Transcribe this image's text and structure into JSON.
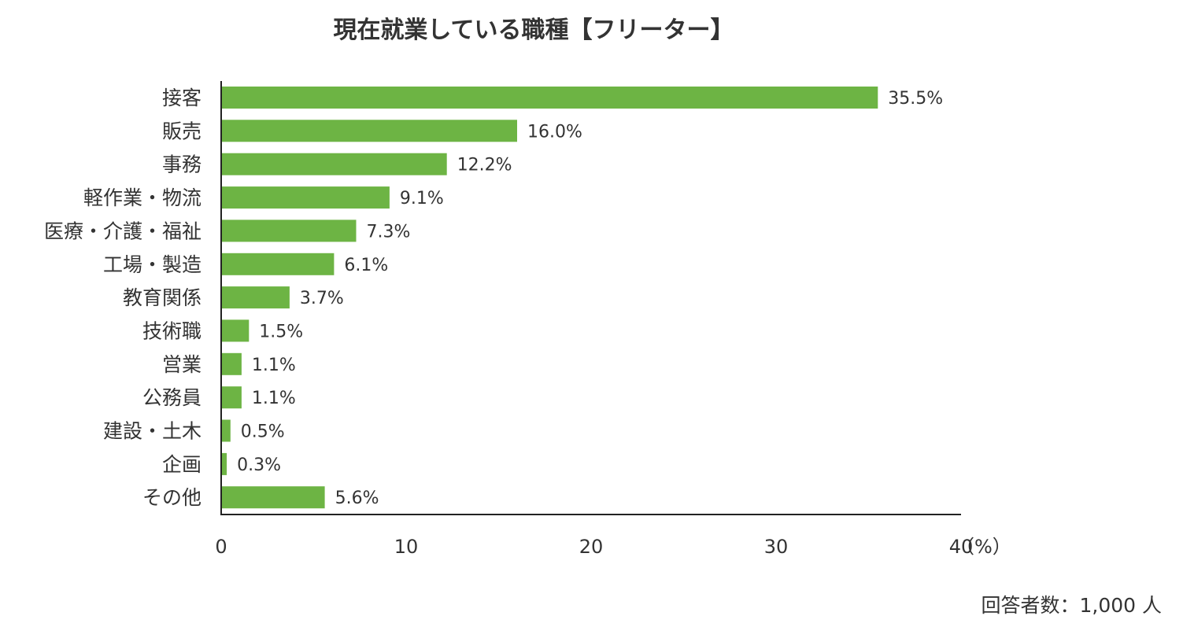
{
  "chart_data": {
    "type": "bar",
    "orientation": "horizontal",
    "title": "現在就業している職種【フリーター】",
    "categories": [
      "接客",
      "販売",
      "事務",
      "軽作業・物流",
      "医療・介護・福祉",
      "工場・製造",
      "教育関係",
      "技術職",
      "営業",
      "公務員",
      "建設・土木",
      "企画",
      "その他"
    ],
    "values": [
      35.5,
      16.0,
      12.2,
      9.1,
      7.3,
      6.1,
      3.7,
      1.5,
      1.1,
      1.1,
      0.5,
      0.3,
      5.6
    ],
    "value_labels": [
      "35.5%",
      "16.0%",
      "12.2%",
      "9.1%",
      "7.3%",
      "6.1%",
      "3.7%",
      "1.5%",
      "1.1%",
      "1.1%",
      "0.5%",
      "0.3%",
      "5.6%"
    ],
    "xlim": [
      0,
      40
    ],
    "xticks": [
      0,
      10,
      20,
      30,
      40
    ],
    "xtick_labels": [
      "0",
      "10",
      "20",
      "30",
      "40"
    ],
    "x_unit_label": "（%）",
    "grid": false,
    "bar_color": "#6db444",
    "footnote": "回答者数：1,000 人"
  }
}
